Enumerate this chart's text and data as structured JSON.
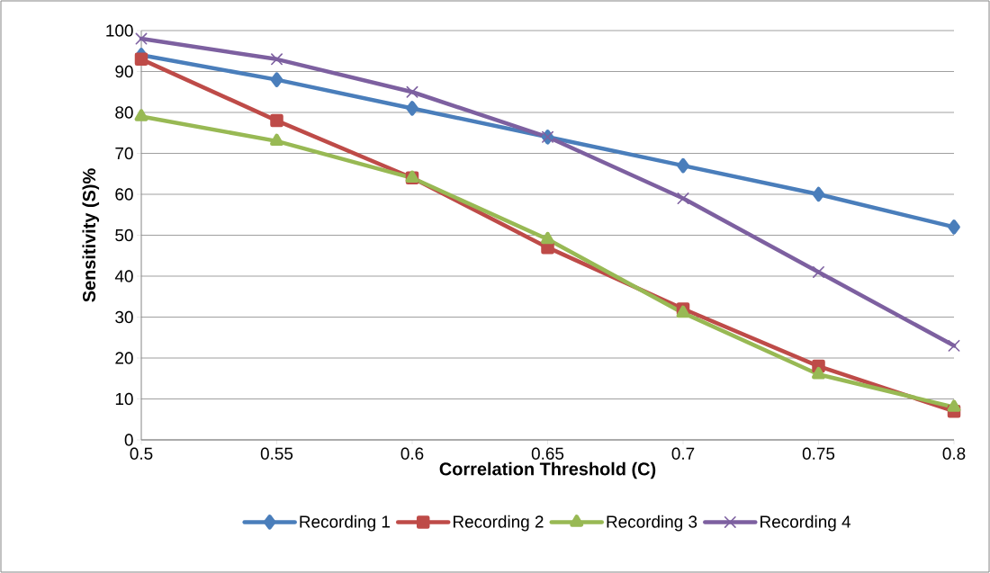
{
  "chart_data": {
    "type": "line",
    "xlabel": "Correlation Threshold (C)",
    "ylabel": "Sensitivity (S)%",
    "x": [
      0.5,
      0.55,
      0.6,
      0.65,
      0.7,
      0.75,
      0.8
    ],
    "xlim": [
      0.5,
      0.8
    ],
    "xticks": [
      0.5,
      0.55,
      0.6,
      0.65,
      0.7,
      0.75,
      0.8
    ],
    "ylim": [
      0,
      100
    ],
    "yticks": [
      0,
      10,
      20,
      30,
      40,
      50,
      60,
      70,
      80,
      90,
      100
    ],
    "grid": "y",
    "legend": "bottom",
    "series": [
      {
        "name": "Recording 1",
        "color": "#4a7ebb",
        "marker": "diamond",
        "values": [
          94,
          88,
          81,
          74,
          67,
          60,
          52
        ]
      },
      {
        "name": "Recording 2",
        "color": "#be4b48",
        "marker": "square",
        "values": [
          93,
          78,
          64,
          47,
          32,
          18,
          7
        ]
      },
      {
        "name": "Recording 3",
        "color": "#98b954",
        "marker": "triangle",
        "values": [
          79,
          73,
          64,
          49,
          31,
          16,
          8
        ]
      },
      {
        "name": "Recording 4",
        "color": "#7d60a0",
        "marker": "cross",
        "values": [
          98,
          93,
          85,
          74,
          59,
          41,
          23
        ]
      }
    ]
  }
}
